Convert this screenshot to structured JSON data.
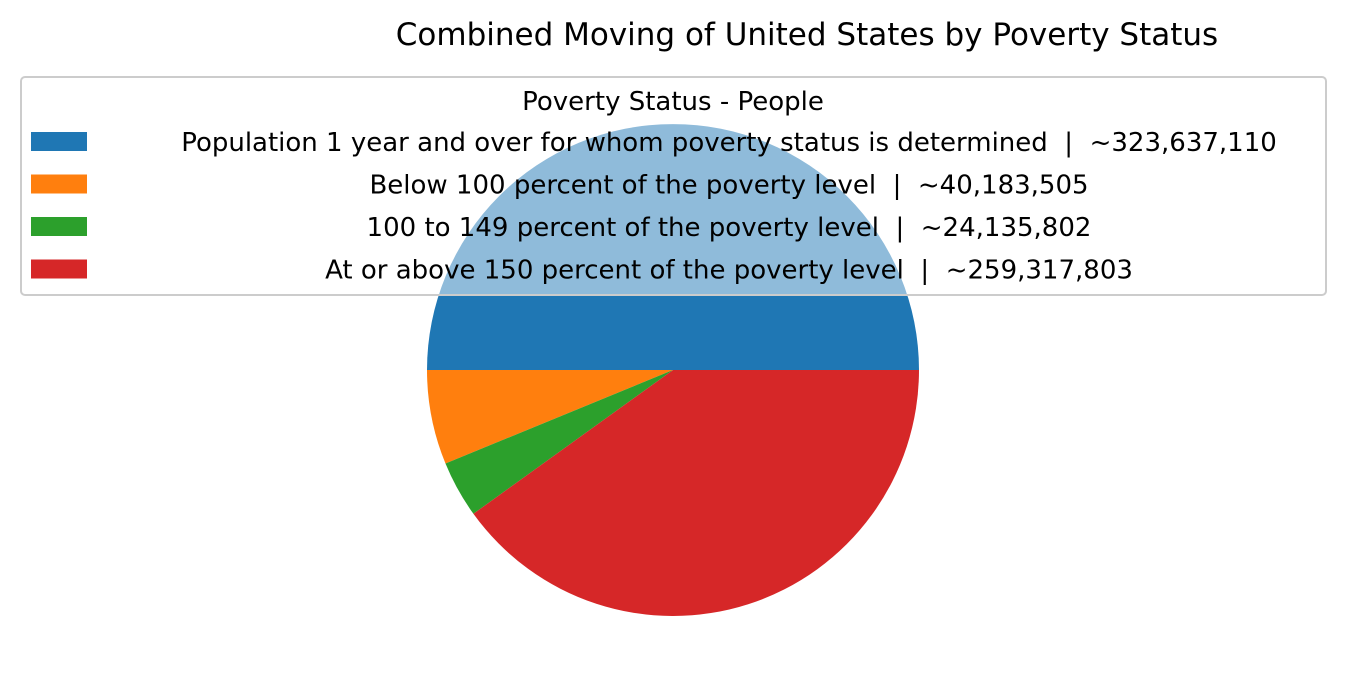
{
  "chart_data": {
    "type": "pie",
    "title": "Combined Moving of United States by Poverty Status",
    "legend": {
      "title": "Poverty Status - People",
      "placement": "top-center",
      "entries": [
        "Population 1 year and over for whom poverty status is determined  |  ~323,637,110",
        "Below 100 percent of the poverty level  |  ~40,183,505",
        "100 to 149 percent of the poverty level  |  ~24,135,802",
        "At or above 150 percent of the poverty level  |  ~259,317,803"
      ]
    },
    "slices": [
      {
        "label": "Population 1 year and over for whom poverty status is determined",
        "value": 323637110,
        "color": "#1f77b4"
      },
      {
        "label": "Below 100 percent of the poverty level",
        "value": 40183505,
        "color": "#ff7f0e"
      },
      {
        "label": "100 to 149 percent of the poverty level",
        "value": 24135802,
        "color": "#2ca02c"
      },
      {
        "label": "At or above 150 percent of the poverty level",
        "value": 259317803,
        "color": "#d62728"
      }
    ],
    "start_angle_deg": 0,
    "direction": "counterclockwise"
  }
}
